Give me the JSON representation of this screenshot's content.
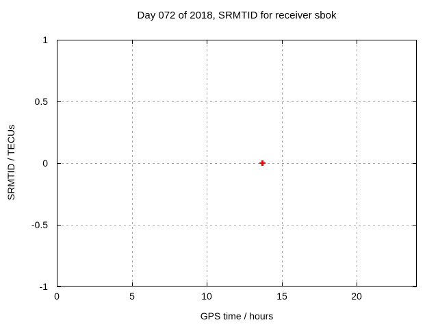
{
  "window": {
    "background": "#ffffff"
  },
  "chart_data": {
    "type": "scatter",
    "title": "Day 072 of 2018, SRMTID for receiver sbok",
    "xlabel": "GPS time / hours",
    "ylabel": "SRMTID / TECUs",
    "xlim": [
      0,
      24
    ],
    "ylim": [
      -1,
      1
    ],
    "xticks": [
      0,
      5,
      10,
      15,
      20
    ],
    "xtick_labels": [
      "0",
      "5",
      "10",
      "15",
      "20"
    ],
    "yticks": [
      1,
      0.5,
      0,
      -0.5,
      -1
    ],
    "ytick_labels": [
      "1",
      "0.5",
      "0",
      "-0.5",
      "-1"
    ],
    "grid": true,
    "grid_style": "dashed",
    "legend_position": "none",
    "series": [
      {
        "name": "SRMTID",
        "marker": "plus",
        "color": "#ff0000",
        "points": [
          {
            "x": 13.7,
            "y": 0.0
          }
        ]
      }
    ]
  },
  "colors": {
    "grid": "#a8a8a8",
    "axis": "#000000",
    "text": "#000000",
    "marker_red": "#ff0000",
    "background": "#ffffff"
  }
}
